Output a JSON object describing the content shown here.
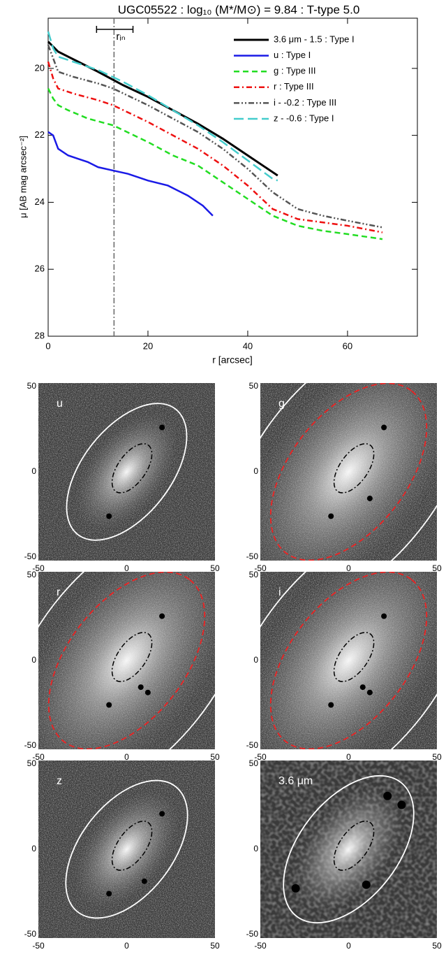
{
  "chart_data": {
    "type": "line",
    "title": "UGC05522 : log₁₀ (M*/M⊙) = 9.84 : T-type 5.0",
    "x_label": "r [arcsec]",
    "y_label": "μ [AB mag arcsec⁻²]",
    "xlim": [
      0,
      74
    ],
    "ylim": [
      28,
      18.5
    ],
    "xticks": [
      0,
      20,
      40,
      60
    ],
    "yticks": [
      20,
      22,
      24,
      26,
      28
    ],
    "legend": "top-right",
    "r_in": {
      "label": "rᵢₙ",
      "value": 13.2,
      "range": [
        9.7,
        17.0
      ]
    },
    "series": [
      {
        "name": "3.6 μm - 1.5 : Type I",
        "color": "#000000",
        "dash": "none",
        "width": 3,
        "x": [
          0,
          2,
          4,
          6,
          10,
          15,
          20,
          25,
          30,
          35,
          40,
          45,
          46
        ],
        "values": [
          19.2,
          19.5,
          19.65,
          19.8,
          20.1,
          20.5,
          20.85,
          21.25,
          21.65,
          22.1,
          22.6,
          23.1,
          23.2
        ]
      },
      {
        "name": "u : Type I",
        "color": "#1a1ae6",
        "dash": "none",
        "width": 2.5,
        "x": [
          0,
          1,
          2,
          4,
          6,
          8,
          10,
          13,
          16,
          20,
          24,
          28,
          31,
          33
        ],
        "values": [
          21.9,
          22.0,
          22.4,
          22.6,
          22.7,
          22.8,
          22.95,
          23.05,
          23.15,
          23.35,
          23.5,
          23.8,
          24.1,
          24.4
        ]
      },
      {
        "name": "g : Type III",
        "color": "#22dd22",
        "dash": "8,5",
        "width": 2.5,
        "x": [
          0,
          1,
          2,
          4,
          8,
          13,
          20,
          25,
          30,
          35,
          40,
          45,
          50,
          55,
          60,
          67
        ],
        "values": [
          20.6,
          20.9,
          21.1,
          21.25,
          21.5,
          21.7,
          22.2,
          22.6,
          22.9,
          23.4,
          23.9,
          24.4,
          24.7,
          24.85,
          24.95,
          25.1
        ]
      },
      {
        "name": "r : Type III",
        "color": "#ee1111",
        "dash": "8,4,2,4",
        "width": 2.5,
        "x": [
          0,
          1,
          2,
          5,
          10,
          13,
          20,
          25,
          30,
          35,
          40,
          45,
          50,
          55,
          60,
          67
        ],
        "values": [
          19.8,
          20.3,
          20.6,
          20.75,
          20.95,
          21.1,
          21.6,
          22.0,
          22.4,
          22.9,
          23.5,
          24.2,
          24.5,
          24.6,
          24.7,
          24.9
        ]
      },
      {
        "name": "i - -0.2 : Type III",
        "color": "#555555",
        "dash": "8,3,2,3,2,3",
        "width": 2.5,
        "x": [
          0,
          1,
          2,
          5,
          10,
          13,
          20,
          25,
          30,
          35,
          40,
          45,
          50,
          55,
          60,
          67
        ],
        "values": [
          19.3,
          19.7,
          20.1,
          20.25,
          20.45,
          20.6,
          21.1,
          21.5,
          21.9,
          22.4,
          23.0,
          23.7,
          24.2,
          24.4,
          24.55,
          24.75
        ]
      },
      {
        "name": "z - -0.6 : Type I",
        "color": "#44cccc",
        "dash": "14,6",
        "width": 2.5,
        "x": [
          0,
          1,
          2,
          5,
          10,
          15,
          20,
          25,
          30,
          35,
          40,
          45,
          46
        ],
        "values": [
          18.9,
          19.4,
          19.65,
          19.8,
          20.05,
          20.4,
          20.8,
          21.25,
          21.7,
          22.2,
          22.75,
          23.3,
          23.35
        ]
      }
    ]
  },
  "panels": [
    {
      "label": "u",
      "xticks": [
        -50,
        0,
        50
      ],
      "yticks": [
        50,
        0,
        -50
      ],
      "lim": [
        -50,
        50
      ],
      "outer": [
        45,
        25
      ],
      "break": null
    },
    {
      "label": "g",
      "xticks": [
        -50,
        0,
        50
      ],
      "yticks": [
        50,
        0,
        -50
      ],
      "lim": [
        -50,
        50
      ],
      "outer": [
        92,
        52
      ],
      "break": [
        58,
        33
      ]
    },
    {
      "label": "r",
      "xticks": [
        -50,
        0,
        50
      ],
      "yticks": [
        50,
        0,
        -50
      ],
      "lim": [
        -50,
        50
      ],
      "outer": [
        92,
        52
      ],
      "break": [
        58,
        33
      ]
    },
    {
      "label": "i",
      "xticks": [
        -50,
        0,
        50
      ],
      "yticks": [
        50,
        0,
        -50
      ],
      "lim": [
        -50,
        50
      ],
      "outer": [
        92,
        52
      ],
      "break": [
        58,
        33
      ]
    },
    {
      "label": "z",
      "xticks": [
        -50,
        0,
        50
      ],
      "yticks": [
        50,
        0,
        -50
      ],
      "lim": [
        -50,
        50
      ],
      "outer": [
        45,
        26
      ],
      "break": null
    },
    {
      "label": "3.6 μm",
      "xticks": [
        -50,
        0,
        50
      ],
      "yticks": [
        50,
        0,
        -50
      ],
      "lim": [
        -50,
        50
      ],
      "outer": [
        48,
        28
      ],
      "break": null
    }
  ]
}
